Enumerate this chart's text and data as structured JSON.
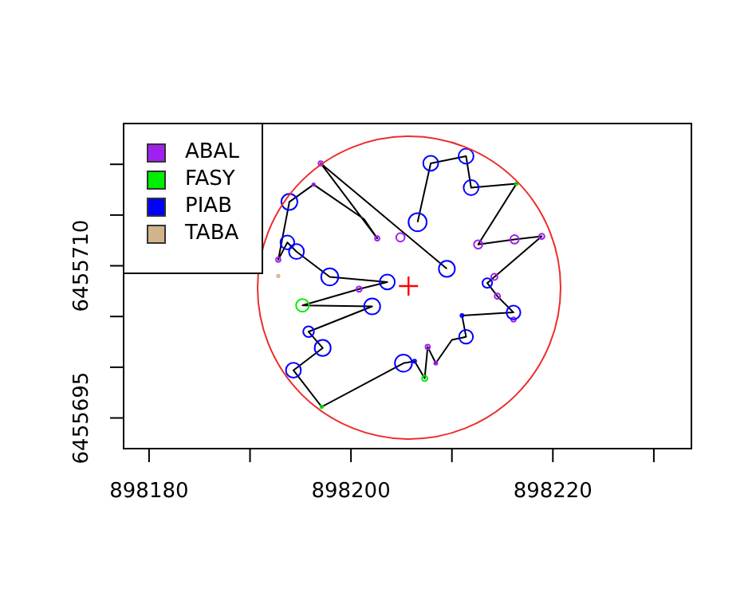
{
  "chart_data": {
    "type": "bubble",
    "legend": "top left",
    "grid": false,
    "xlim": [
      898177.4,
      898233.8
    ],
    "ylim": [
      6455691.9,
      6455724.1
    ],
    "xticks": [
      898180,
      {
        "value": 898190,
        "label": null
      },
      898200,
      {
        "value": 898210,
        "label": null
      },
      898220,
      {
        "value": 898230,
        "label": null
      }
    ],
    "yticks": [
      6455695,
      {
        "value": 6455700,
        "label": null
      },
      {
        "value": 6455705,
        "label": null
      },
      6455710,
      {
        "value": 6455715,
        "label": null
      },
      {
        "value": 6455720,
        "label": null
      }
    ],
    "series": [
      {
        "type": "line",
        "color": "#000000",
        "marker": "none",
        "x": [
          898206.6,
          898207.9,
          898211.4,
          898211.9,
          898216.4,
          898212.6,
          898216.2,
          898218.9,
          898213.5,
          898214.5,
          898216.1,
          898211.0,
          898211.4,
          898210.0,
          898208.4,
          898207.6,
          898207.3,
          898206.3,
          898205.2,
          898197.1,
          898194.3,
          898197.2,
          898195.8,
          898202.1,
          898195.2,
          898200.8,
          898203.6,
          898197.9,
          898194.6,
          898193.7,
          898192.8,
          898193.9,
          898196.3,
          898201.3,
          898202.6,
          898197.0,
          898209.5
        ],
        "values": [
          6455714.3,
          6455720.1,
          6455720.8,
          6455717.7,
          6455718.1,
          6455712.1,
          6455712.6,
          6455712.9,
          6455708.3,
          6455707.0,
          6455705.4,
          6455705.1,
          6455703.0,
          6455702.7,
          6455700.4,
          6455702.0,
          6455698.9,
          6455700.6,
          6455700.4,
          6455696.1,
          6455699.7,
          6455701.9,
          6455703.5,
          6455706.0,
          6455706.1,
          6455707.7,
          6455708.4,
          6455708.9,
          6455711.4,
          6455712.3,
          6455710.6,
          6455716.3,
          6455718.0,
          6455714.6,
          6455712.7,
          6455720.1,
          6455709.7
        ]
      },
      {
        "name": "ABAL",
        "color": "#a020f0",
        "x": [
          898197.0,
          898196.3,
          898202.6,
          898204.9,
          898212.6,
          898216.2,
          898218.9,
          898214.2,
          898214.5,
          898200.8,
          898192.8,
          898207.6,
          898208.4,
          898216.1
        ],
        "values": [
          6455720.1,
          6455718.0,
          6455712.7,
          6455712.8,
          6455712.1,
          6455712.6,
          6455712.9,
          6455708.9,
          6455707.0,
          6455707.7,
          6455710.6,
          6455702.0,
          6455700.4,
          6455704.7
        ],
        "sizes": [
          0.06,
          0.02,
          0.06,
          0.22,
          0.22,
          0.22,
          0.09,
          0.12,
          0.09,
          0.09,
          0.06,
          0.06,
          0.03,
          0.06
        ]
      },
      {
        "name": "FASY",
        "color": "#00ee00",
        "x": [
          898195.2,
          898207.3,
          898216.4,
          898197.1
        ],
        "values": [
          6455706.1,
          6455698.9,
          6455718.1,
          6455696.1
        ],
        "sizes": [
          0.5,
          0.09,
          0.02,
          0.02
        ]
      },
      {
        "name": "PIAB",
        "color": "#0000ff",
        "x": [
          898207.9,
          898211.4,
          898211.9,
          898206.6,
          898193.9,
          898193.7,
          898194.6,
          898197.9,
          898203.6,
          898209.5,
          898202.1,
          898195.8,
          898197.2,
          898194.3,
          898205.2,
          898211.4,
          898216.1,
          898213.5,
          898211.0,
          898206.3
        ],
        "values": [
          6455720.1,
          6455720.8,
          6455717.7,
          6455714.3,
          6455716.3,
          6455712.3,
          6455711.4,
          6455708.9,
          6455708.4,
          6455709.7,
          6455706.0,
          6455703.5,
          6455701.9,
          6455699.7,
          6455700.4,
          6455703.0,
          6455705.4,
          6455708.3,
          6455705.1,
          6455700.6
        ],
        "sizes": [
          0.68,
          0.68,
          0.68,
          1,
          0.78,
          0.58,
          0.68,
          0.89,
          0.68,
          0.78,
          0.78,
          0.35,
          0.78,
          0.68,
          0.89,
          0.58,
          0.58,
          0.28,
          0.03,
          0.03
        ]
      },
      {
        "name": "TABA",
        "color": "#d2b48c",
        "x": [
          898192.8
        ],
        "values": [
          6455709.0
        ],
        "sizes": [
          0.02
        ]
      },
      {
        "type": "scatter",
        "color": "#ff0000",
        "marker": "cross",
        "x": [
          898205.7
        ],
        "values": [
          6455708.0
        ]
      }
    ]
  }
}
